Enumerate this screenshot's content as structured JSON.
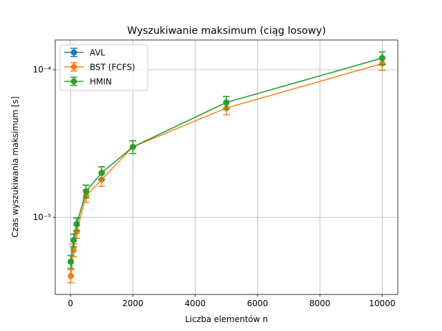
{
  "chart_data": {
    "type": "line",
    "title": "Wyszukiwanie maksimum (ciąg losowy)",
    "x_label": "Liczba elementów n",
    "y_label": "Czas wyszukiwania maksimum [s]",
    "x": [
      10,
      100,
      200,
      500,
      1000,
      2000,
      5000,
      10000
    ],
    "series": [
      {
        "name": "AVL",
        "color": "#1f77b4",
        "values": [
          5e-06,
          7e-06,
          9e-06,
          1.5e-05,
          2e-05,
          3e-05,
          6e-05,
          0.00012
        ],
        "errors": [
          5e-07,
          7e-07,
          9e-07,
          1.5e-06,
          2e-06,
          3e-06,
          6e-06,
          1.2e-05
        ]
      },
      {
        "name": "BST (FCFS)",
        "color": "#ff7f0e",
        "values": [
          4e-06,
          6e-06,
          8e-06,
          1.4e-05,
          1.8e-05,
          3e-05,
          5.5e-05,
          0.00011
        ],
        "errors": [
          4e-07,
          6e-07,
          8e-07,
          1.4e-06,
          1.8e-06,
          3e-06,
          5.5e-06,
          1.1e-05
        ]
      },
      {
        "name": "HMIN",
        "color": "#2ca02c",
        "values": [
          5e-06,
          7e-06,
          9e-06,
          1.5e-05,
          2e-05,
          3e-05,
          6e-05,
          0.00012
        ],
        "errors": [
          5e-07,
          7e-07,
          9e-07,
          1.5e-06,
          2e-06,
          3e-06,
          6e-06,
          1.2e-05
        ]
      }
    ],
    "xlim": [
      -489.5,
      10499.5
    ],
    "xticks": [
      0,
      2000,
      4000,
      6000,
      8000,
      10000
    ],
    "ylim": [
      3e-06,
      0.000159
    ],
    "y_scale": "log",
    "yticks": [
      {
        "value": 1e-05,
        "label": "10⁻⁵"
      },
      {
        "value": 0.0001,
        "label": "10⁻⁴"
      }
    ],
    "grid": true,
    "legend": "upper left"
  }
}
